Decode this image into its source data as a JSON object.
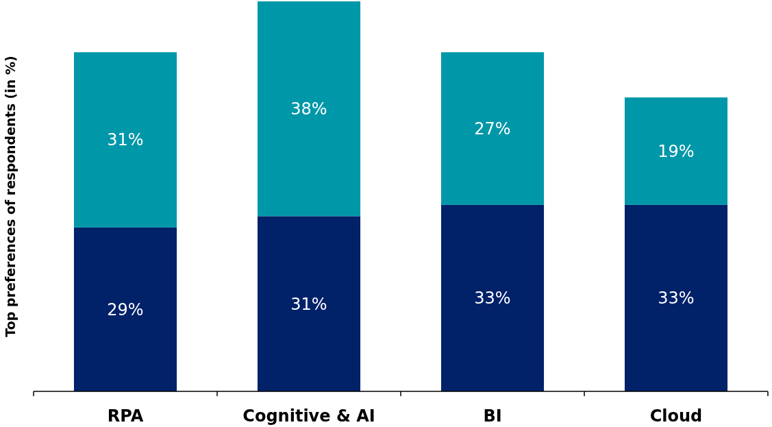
{
  "chart_data": {
    "type": "bar",
    "stacked": true,
    "ylabel": "Top preferences of respondents (in %)",
    "categories": [
      "RPA",
      "Cognitive & AI",
      "BI",
      "Cloud"
    ],
    "series": [
      {
        "color": "#012169",
        "values": [
          29,
          31,
          33,
          33
        ],
        "value_labels": [
          "29%",
          "31%",
          "33%",
          "33%"
        ]
      },
      {
        "color": "#0097a9",
        "values": [
          31,
          38,
          27,
          19
        ],
        "value_labels": [
          "31%",
          "38%",
          "27%",
          "19%"
        ]
      }
    ]
  }
}
